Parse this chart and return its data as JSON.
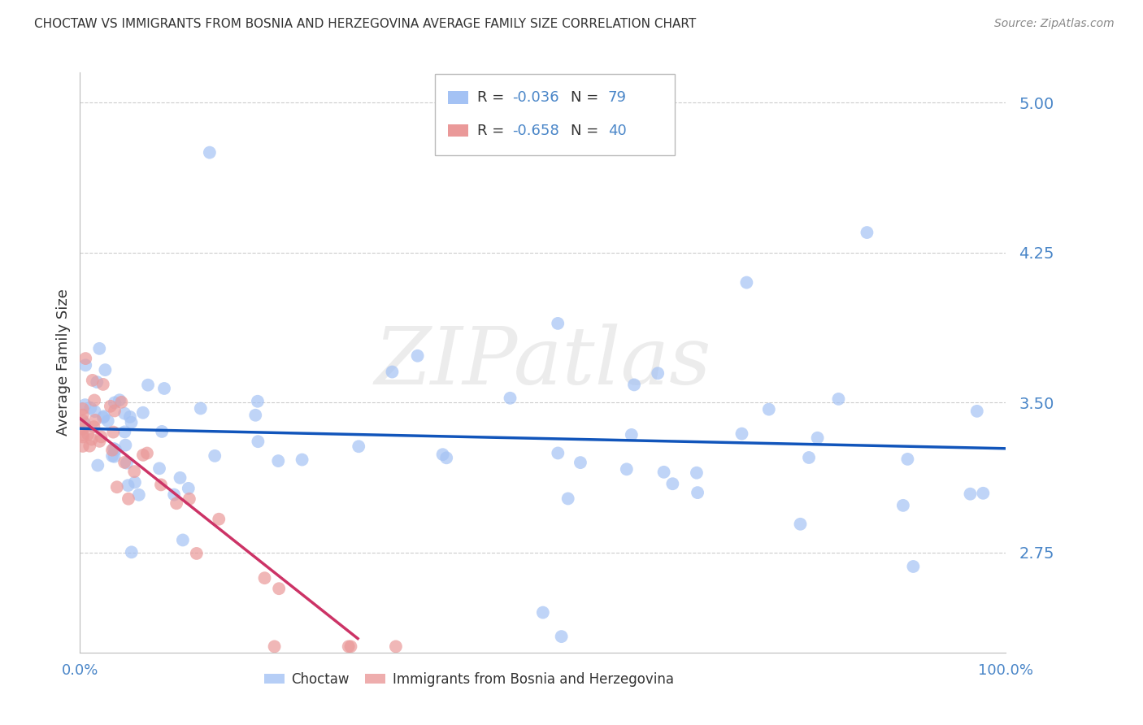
{
  "title": "CHOCTAW VS IMMIGRANTS FROM BOSNIA AND HERZEGOVINA AVERAGE FAMILY SIZE CORRELATION CHART",
  "source": "Source: ZipAtlas.com",
  "ylabel": "Average Family Size",
  "yticks": [
    2.75,
    3.5,
    4.25,
    5.0
  ],
  "ymin": 2.25,
  "ymax": 5.15,
  "xmin": 0.0,
  "xmax": 100.0,
  "watermark": "ZIPatlas",
  "series1_label": "Choctaw",
  "series1_color": "#a4c2f4",
  "series1_R": -0.036,
  "series1_N": 79,
  "series2_label": "Immigrants from Bosnia and Herzegovina",
  "series2_color": "#ea9999",
  "series2_R": -0.658,
  "series2_N": 40,
  "axis_color": "#4a86c8",
  "grid_color": "#cccccc",
  "blue_line_color": "#1155bb",
  "pink_line_color": "#cc3366",
  "blue_line_start_x": 0.0,
  "blue_line_start_y": 3.37,
  "blue_line_end_x": 100.0,
  "blue_line_end_y": 3.27,
  "pink_line_start_x": 0.0,
  "pink_line_start_y": 3.42,
  "pink_line_end_x": 30.0,
  "pink_line_end_y": 2.32
}
